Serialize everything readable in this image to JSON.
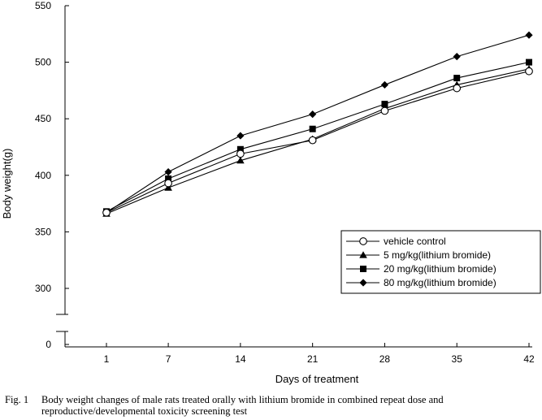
{
  "chart_data": {
    "type": "line",
    "x": [
      1,
      7,
      14,
      21,
      28,
      35,
      42
    ],
    "xlabel": "Days of treatment",
    "ylabel": "Body weight(g)",
    "ylim": [
      300,
      550
    ],
    "y_ticks": [
      300,
      350,
      400,
      450,
      500,
      550
    ],
    "y_zero_label": "0",
    "axis_break": true,
    "grid": false,
    "legend_position": "center-right",
    "series": [
      {
        "name": "vehicle control",
        "marker": "open-circle",
        "values": [
          367,
          393,
          419,
          431,
          457,
          477,
          492
        ]
      },
      {
        "name": "  5 mg/kg(lithium bromide)",
        "marker": "filled-triangle",
        "values": [
          366,
          389,
          413,
          432,
          459,
          480,
          494
        ]
      },
      {
        "name": "20 mg/kg(lithium bromide)",
        "marker": "filled-square",
        "values": [
          368,
          397,
          423,
          441,
          463,
          486,
          500
        ]
      },
      {
        "name": "80 mg/kg(lithium bromide)",
        "marker": "filled-diamond",
        "values": [
          367,
          403,
          435,
          454,
          480,
          505,
          524
        ]
      }
    ]
  },
  "caption": {
    "label": "Fig. 1",
    "line1": "Body weight changes of male rats treated orally with lithium bromide in combined repeat dose and",
    "line2": "reproductive/developmental toxicity screening test"
  }
}
